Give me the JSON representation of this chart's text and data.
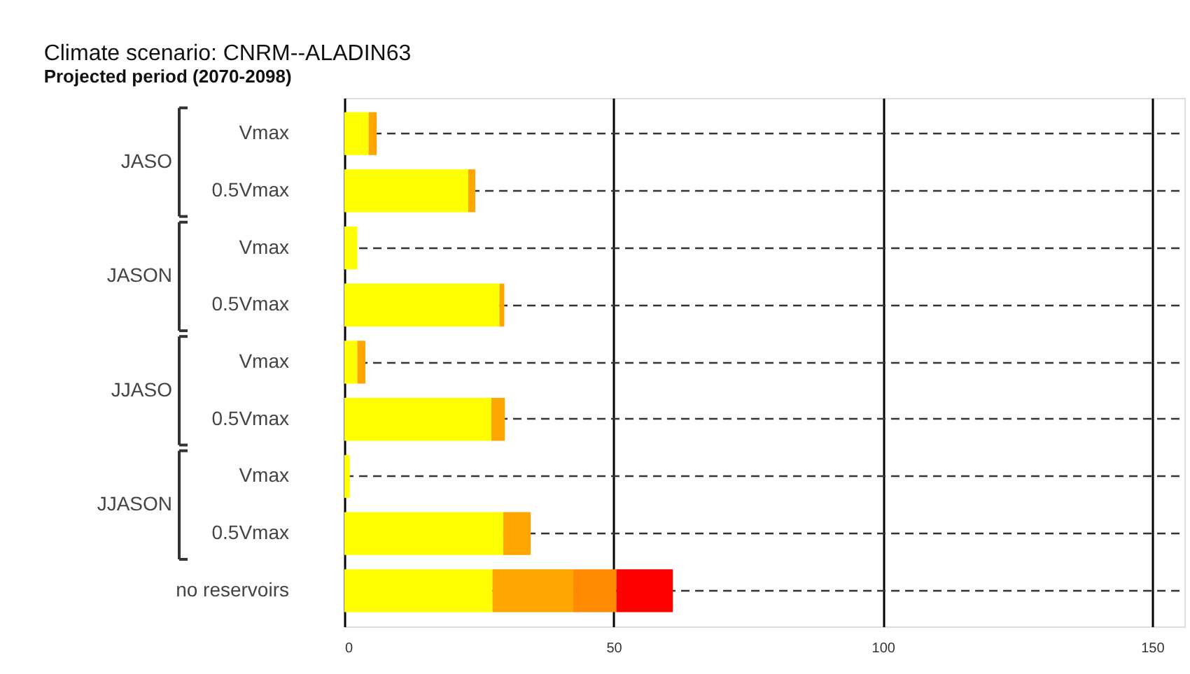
{
  "chart_data": {
    "type": "bar",
    "orientation": "horizontal",
    "stacked": true,
    "title": "Climate scenario: CNRM--ALADIN63",
    "subtitle": "Projected period (2070-2098)",
    "categories": [
      "Vmax",
      "0.5Vmax",
      "Vmax",
      "0.5Vmax",
      "Vmax",
      "0.5Vmax",
      "Vmax",
      "0.5Vmax",
      "no reservoirs"
    ],
    "series": [
      {
        "color": "#ffff00",
        "values": [
          4.5,
          23.0,
          2.4,
          28.8,
          2.4,
          27.3,
          1.0,
          29.5,
          27.5
        ]
      },
      {
        "color": "#ffa500",
        "values": [
          1.5,
          1.3,
          null,
          0.9,
          1.5,
          2.5,
          null,
          5.1,
          15.0
        ]
      },
      {
        "color": "#ff8c00",
        "values": [
          null,
          null,
          null,
          null,
          null,
          null,
          null,
          null,
          8.0
        ]
      },
      {
        "color": "#ff0000",
        "values": [
          null,
          null,
          null,
          null,
          null,
          null,
          null,
          null,
          10.5
        ]
      }
    ],
    "annotations": [
      "JASO",
      "JASON",
      "JJASO",
      "JJASON"
    ],
    "xlim": [
      0,
      156
    ],
    "xticks": [
      0,
      50,
      100,
      150
    ],
    "grid": true,
    "legend": false
  }
}
